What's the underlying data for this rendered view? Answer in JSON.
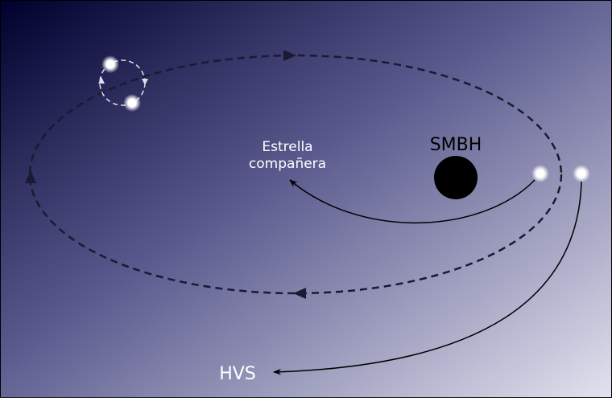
{
  "labels": {
    "companion": [
      "Estrella",
      "compañera"
    ],
    "smbh": "SMBH",
    "hvs": "HVS"
  }
}
